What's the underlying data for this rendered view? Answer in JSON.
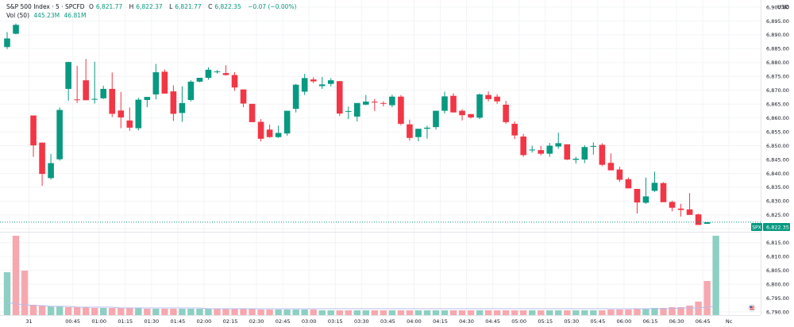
{
  "header": {
    "symbol": "S&P 500 Index · 5 · SPCFD",
    "o_label": "O",
    "o_value": "6,821.77",
    "h_label": "H",
    "h_value": "6,822.37",
    "l_label": "L",
    "l_value": "6,821.77",
    "c_label": "C",
    "c_value": "6,822.35",
    "change": "−0.07 (−0.00%)",
    "vol_label": "Vol (50)",
    "vol_value1": "445.23M",
    "vol_value2": "46.81M"
  },
  "currency": "USD",
  "last_price_tag": {
    "symbol": "SPX",
    "value": "6,822.35"
  },
  "colors": {
    "up": "#089981",
    "down": "#f23645",
    "up_vol": "#8dcfc3",
    "down_vol": "#f7a7ae",
    "ma": "#b7bdee"
  },
  "chart_data": {
    "type": "candlestick",
    "y_ticks": [
      6790,
      6795,
      6800,
      6805,
      6810,
      6815,
      6820,
      6825,
      6830,
      6835,
      6840,
      6845,
      6850,
      6855,
      6860,
      6865,
      6870,
      6875,
      6880,
      6885,
      6890,
      6895,
      6900
    ],
    "y_tick_labels": [
      "6,790.00",
      "6,795.00",
      "6,800.00",
      "6,805.00",
      "6,810.00",
      "6,815.00",
      "6,820.00",
      "6,825.00",
      "6,830.00",
      "6,835.00",
      "6,840.00",
      "6,845.00",
      "6,850.00",
      "6,855.00",
      "6,860.00",
      "6,865.00",
      "6,870.00",
      "6,875.00",
      "6,880.00",
      "6,885.00",
      "6,890.00",
      "6,895.00",
      "6,900.00"
    ],
    "x_labels": [
      {
        "i": 2.5,
        "label": "31"
      },
      {
        "i": 7.5,
        "label": "00:45"
      },
      {
        "i": 10.5,
        "label": "01:00"
      },
      {
        "i": 13.5,
        "label": "01:15"
      },
      {
        "i": 16.5,
        "label": "01:30"
      },
      {
        "i": 19.5,
        "label": "01:45"
      },
      {
        "i": 22.5,
        "label": "02:00"
      },
      {
        "i": 25.5,
        "label": "02:15"
      },
      {
        "i": 28.5,
        "label": "02:30"
      },
      {
        "i": 31.5,
        "label": "02:45"
      },
      {
        "i": 34.5,
        "label": "03:00"
      },
      {
        "i": 37.5,
        "label": "03:15"
      },
      {
        "i": 40.5,
        "label": "03:30"
      },
      {
        "i": 43.5,
        "label": "03:45"
      },
      {
        "i": 46.5,
        "label": "04:00"
      },
      {
        "i": 49.5,
        "label": "04:15"
      },
      {
        "i": 52.5,
        "label": "04:30"
      },
      {
        "i": 55.5,
        "label": "04:45"
      },
      {
        "i": 58.5,
        "label": "05:00"
      },
      {
        "i": 61.5,
        "label": "05:15"
      },
      {
        "i": 64.5,
        "label": "05:30"
      },
      {
        "i": 67.5,
        "label": "05:45"
      },
      {
        "i": 70.5,
        "label": "06:00"
      },
      {
        "i": 73.5,
        "label": "06:15"
      },
      {
        "i": 76.5,
        "label": "06:30"
      },
      {
        "i": 79.5,
        "label": "06:45"
      },
      {
        "i": 82.5,
        "label": "Nc"
      }
    ],
    "candles": [
      [
        6885.6,
        6891.0,
        6884.9,
        6888.7
      ],
      [
        6890.4,
        6894.1,
        6890.2,
        6893.6
      ],
      null,
      [
        6860.9,
        6860.9,
        6846.0,
        6850.1
      ],
      [
        6851.1,
        6851.1,
        6835.5,
        6839.8
      ],
      [
        6838.3,
        6847.0,
        6837.8,
        6843.7
      ],
      [
        6845.1,
        6863.8,
        6844.6,
        6862.9
      ],
      [
        6870.5,
        6880.3,
        6866.2,
        6880.2
      ],
      [
        6866.7,
        6878.8,
        6865.4,
        6866.6
      ],
      [
        6873.6,
        6881.3,
        6866.4,
        6866.4
      ],
      [
        6866.6,
        6880.3,
        6865.2,
        6866.9
      ],
      [
        6867.1,
        6871.6,
        6866.8,
        6870.5
      ],
      [
        6870.5,
        6876.4,
        6860.3,
        6861.5
      ],
      [
        6862.7,
        6869.4,
        6856.3,
        6860.2
      ],
      [
        6859.1,
        6863.8,
        6855.4,
        6856.5
      ],
      [
        6856.3,
        6867.3,
        6855.5,
        6866.6
      ],
      [
        6866.5,
        6867.3,
        6863.9,
        6867.6
      ],
      [
        6868.5,
        6879.5,
        6866.7,
        6876.5
      ],
      [
        6876.7,
        6877.5,
        6868.8,
        6868.8
      ],
      [
        6869.6,
        6871.8,
        6858.9,
        6861.5
      ],
      [
        6861.8,
        6871.4,
        6858.6,
        6865.4
      ],
      [
        6866.5,
        6873.6,
        6866.0,
        6873.1
      ],
      [
        6873.1,
        6874.2,
        6872.9,
        6874.5
      ],
      [
        6874.5,
        6878.3,
        6873.8,
        6877.4
      ],
      [
        6876.6,
        6877.3,
        6876.0,
        6876.8
      ],
      [
        6876.2,
        6879.0,
        6875.3,
        6875.5
      ],
      [
        6875.5,
        6876.5,
        6869.8,
        6871.0
      ],
      [
        6870.3,
        6870.3,
        6863.9,
        6865.2
      ],
      [
        6865.1,
        6865.1,
        6858.7,
        6858.5
      ],
      [
        6858.6,
        6859.6,
        6851.5,
        6852.5
      ],
      [
        6855.8,
        6857.6,
        6852.9,
        6853.1
      ],
      [
        6853.1,
        6857.2,
        6852.8,
        6854.6
      ],
      [
        6854.4,
        6859.4,
        6853.6,
        6862.6
      ],
      [
        6863.3,
        6872.3,
        6862.0,
        6872.0
      ],
      [
        6869.5,
        6875.9,
        6868.3,
        6874.4
      ],
      [
        6873.9,
        6874.7,
        6872.6,
        6873.2
      ],
      [
        6871.5,
        6874.8,
        6870.5,
        6872.1
      ],
      [
        6872.3,
        6874.4,
        6871.4,
        6873.6
      ],
      [
        6873.3,
        6873.3,
        6860.7,
        6861.6
      ],
      [
        6862.4,
        6864.1,
        6859.6,
        6862.5
      ],
      [
        6860.5,
        6861.8,
        6858.7,
        6865.4
      ],
      [
        6864.8,
        6868.3,
        6864.6,
        6865.9
      ],
      [
        6865.9,
        6866.9,
        6862.5,
        6865.6
      ],
      [
        6865.4,
        6866.0,
        6864.2,
        6865.2
      ],
      [
        6864.6,
        6868.4,
        6863.9,
        6867.7
      ],
      [
        6867.7,
        6868.3,
        6857.4,
        6857.9
      ],
      [
        6857.7,
        6859.4,
        6851.8,
        6852.8
      ],
      [
        6853.1,
        6856.0,
        6851.6,
        6856.1
      ],
      [
        6856.1,
        6857.2,
        6852.5,
        6856.5
      ],
      [
        6856.7,
        6862.6,
        6855.8,
        6862.6
      ],
      [
        6862.6,
        6869.5,
        6861.6,
        6867.8
      ],
      [
        6868.0,
        6868.9,
        6862.0,
        6862.0
      ],
      [
        6862.6,
        6863.2,
        6859.1,
        6861.0
      ],
      [
        6861.4,
        6861.4,
        6859.8,
        6860.2
      ],
      [
        6860.1,
        6868.8,
        6859.6,
        6868.5
      ],
      [
        6868.3,
        6869.6,
        6866.0,
        6866.8
      ],
      [
        6867.7,
        6868.6,
        6865.1,
        6866.0
      ],
      [
        6864.8,
        6866.2,
        6857.9,
        6858.5
      ],
      [
        6857.9,
        6858.7,
        6852.4,
        6853.7
      ],
      [
        6853.3,
        6854.3,
        6846.0,
        6846.6
      ],
      [
        6848.3,
        6850.0,
        6847.5,
        6848.6
      ],
      [
        6848.4,
        6850.0,
        6846.5,
        6847.1
      ],
      [
        6847.1,
        6851.0,
        6846.0,
        6850.0
      ],
      [
        6849.7,
        6854.7,
        6848.9,
        6850.9
      ],
      [
        6850.5,
        6850.5,
        6844.8,
        6845.0
      ],
      [
        6844.9,
        6846.0,
        6843.6,
        6845.3
      ],
      [
        6845.0,
        6850.2,
        6843.7,
        6849.5
      ],
      [
        6849.6,
        6851.2,
        6846.8,
        6849.9
      ],
      [
        6850.3,
        6850.9,
        6842.6,
        6843.1
      ],
      [
        6843.8,
        6847.2,
        6841.2,
        6841.1
      ],
      [
        6841.4,
        6842.4,
        6836.9,
        6837.7
      ],
      [
        6837.9,
        6838.5,
        6834.6,
        6834.6
      ],
      [
        6834.4,
        6834.4,
        6825.5,
        6829.5
      ],
      [
        6829.4,
        6838.5,
        6829.0,
        6831.7
      ],
      [
        6833.7,
        6840.6,
        6833.3,
        6836.6
      ],
      [
        6836.5,
        6836.8,
        6829.7,
        6829.6
      ],
      [
        6829.7,
        6830.1,
        6826.3,
        6827.6
      ],
      [
        6827.3,
        6829.0,
        6824.4,
        6826.8
      ],
      [
        6827.0,
        6832.9,
        6826.5,
        6825.0
      ],
      [
        6825.2,
        6825.5,
        6821.4,
        6821.4
      ],
      [
        6821.8,
        6822.4,
        6821.8,
        6822.4
      ]
    ],
    "volume_pct": [
      54,
      100,
      56,
      13,
      12,
      11,
      11,
      10,
      10,
      10,
      9,
      9,
      9,
      9,
      9,
      9,
      8,
      8,
      8,
      8,
      8,
      8,
      8,
      8,
      8,
      8,
      8,
      8,
      8,
      7,
      7,
      7,
      7,
      7,
      7,
      7,
      6,
      6,
      6,
      6,
      6,
      6,
      6,
      6,
      6,
      6,
      6,
      6,
      6,
      6,
      6,
      6,
      6,
      6,
      6,
      6,
      6,
      6,
      6,
      6,
      6,
      6,
      6,
      6,
      6,
      6,
      6,
      6,
      6,
      7,
      7,
      7,
      8,
      8,
      9,
      9,
      10,
      10,
      12,
      17,
      43,
      100
    ],
    "volume_up": [
      true,
      false,
      false,
      false,
      false,
      true,
      true,
      false,
      false,
      false,
      false,
      true,
      false,
      false,
      false,
      true,
      false,
      true,
      false,
      false,
      true,
      true,
      true,
      true,
      false,
      false,
      false,
      false,
      false,
      false,
      false,
      true,
      true,
      true,
      true,
      false,
      true,
      true,
      false,
      false,
      true,
      true,
      false,
      false,
      true,
      false,
      false,
      true,
      true,
      true,
      true,
      false,
      false,
      false,
      true,
      false,
      false,
      false,
      false,
      false,
      true,
      false,
      true,
      true,
      false,
      true,
      true,
      true,
      false,
      false,
      false,
      false,
      false,
      true,
      true,
      false,
      false,
      false,
      false,
      false,
      false,
      true
    ],
    "volume_ma_pct": [
      16,
      14,
      13,
      12,
      12,
      11,
      11,
      11,
      10,
      10,
      10,
      10,
      10,
      9,
      9,
      9,
      9,
      9,
      9,
      9,
      9,
      9,
      9,
      8,
      8,
      8,
      8,
      8,
      8,
      8,
      8,
      8,
      8,
      8,
      8,
      8,
      8,
      8,
      8,
      8,
      8,
      8,
      8,
      8,
      8,
      8,
      8,
      8,
      8,
      8,
      8,
      8,
      8,
      8,
      8,
      8,
      8,
      8,
      8,
      8,
      8,
      8,
      8,
      8,
      8,
      8,
      8,
      8,
      8,
      8,
      8,
      8,
      8,
      8,
      8,
      8,
      8,
      9,
      9,
      9,
      10,
      11
    ]
  }
}
